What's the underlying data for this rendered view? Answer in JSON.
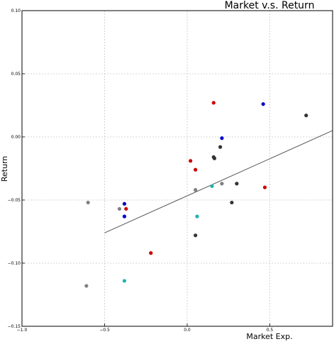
{
  "chart_data": {
    "type": "scatter",
    "title": "Market v.s. Return",
    "xlabel": "Market Exp.",
    "ylabel": "Return",
    "xlim": [
      -1.0,
      0.88
    ],
    "ylim": [
      -0.15,
      0.1
    ],
    "xticks": [
      -1.0,
      -0.5,
      0.0,
      0.5
    ],
    "xtick_labels": [
      "−1.0",
      "−0.5",
      "0.0",
      "0.5"
    ],
    "yticks": [
      -0.15,
      -0.1,
      -0.05,
      0.0,
      0.05,
      0.1
    ],
    "ytick_labels": [
      "−0.15",
      "−0.10",
      "−0.05",
      "0.00",
      "0.05",
      "0.10"
    ],
    "grid": true,
    "points": [
      {
        "x": -0.6,
        "y": -0.052,
        "color": "#808080"
      },
      {
        "x": -0.61,
        "y": -0.118,
        "color": "#808080"
      },
      {
        "x": -0.41,
        "y": -0.057,
        "color": "#808080"
      },
      {
        "x": -0.38,
        "y": -0.053,
        "color": "#0000cc"
      },
      {
        "x": -0.38,
        "y": -0.063,
        "color": "#0000cc"
      },
      {
        "x": -0.37,
        "y": -0.057,
        "color": "#cc0000"
      },
      {
        "x": -0.38,
        "y": -0.114,
        "color": "#20b2aa"
      },
      {
        "x": -0.22,
        "y": -0.092,
        "color": "#cc0000"
      },
      {
        "x": 0.02,
        "y": -0.019,
        "color": "#cc0000"
      },
      {
        "x": 0.05,
        "y": -0.026,
        "color": "#cc0000"
      },
      {
        "x": 0.05,
        "y": -0.042,
        "color": "#808080"
      },
      {
        "x": 0.05,
        "y": -0.078,
        "color": "#333333"
      },
      {
        "x": 0.06,
        "y": -0.063,
        "color": "#20b2aa"
      },
      {
        "x": 0.15,
        "y": -0.039,
        "color": "#20b2aa"
      },
      {
        "x": 0.16,
        "y": 0.027,
        "color": "#cc0000"
      },
      {
        "x": 0.16,
        "y": -0.016,
        "color": "#333333"
      },
      {
        "x": 0.165,
        "y": -0.017,
        "color": "#333333"
      },
      {
        "x": 0.2,
        "y": -0.008,
        "color": "#333333"
      },
      {
        "x": 0.21,
        "y": -0.001,
        "color": "#0000cc"
      },
      {
        "x": 0.21,
        "y": -0.037,
        "color": "#808080"
      },
      {
        "x": 0.27,
        "y": -0.052,
        "color": "#333333"
      },
      {
        "x": 0.3,
        "y": -0.037,
        "color": "#333333"
      },
      {
        "x": 0.46,
        "y": 0.026,
        "color": "#0000cc"
      },
      {
        "x": 0.47,
        "y": -0.04,
        "color": "#cc0000"
      },
      {
        "x": 0.72,
        "y": 0.017,
        "color": "#333333"
      }
    ],
    "trend_line": {
      "x": [
        -0.5,
        0.88
      ],
      "y": [
        -0.076,
        0.005
      ],
      "color": "#555555"
    }
  }
}
